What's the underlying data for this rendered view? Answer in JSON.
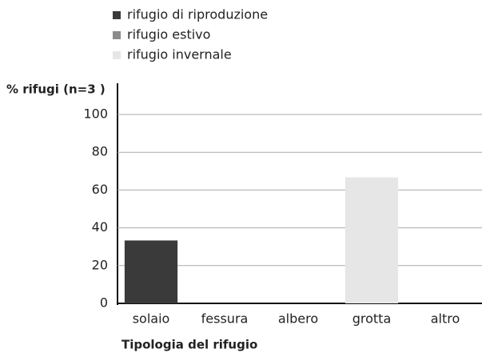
{
  "chart_data": {
    "type": "bar",
    "stacked": true,
    "y_label": "% rifugi (n=3 )",
    "x_label": "Tipologia del rifugio",
    "categories": [
      "solaio",
      "fessura",
      "albero",
      "grotta",
      "altro"
    ],
    "series": [
      {
        "name": "rifugio di riproduzione",
        "color": "#3a3a3a",
        "values": [
          33.3,
          0,
          0,
          0,
          0
        ]
      },
      {
        "name": "rifugio estivo",
        "color": "#8c8c8c",
        "values": [
          0,
          0,
          0,
          0,
          0
        ]
      },
      {
        "name": "rifugio invernale",
        "color": "#e6e6e6",
        "values": [
          0,
          0,
          0,
          66.7,
          0
        ]
      }
    ],
    "ylim": [
      0,
      100
    ],
    "yticks": [
      0,
      20,
      40,
      60,
      80,
      100
    ],
    "grid": true
  }
}
